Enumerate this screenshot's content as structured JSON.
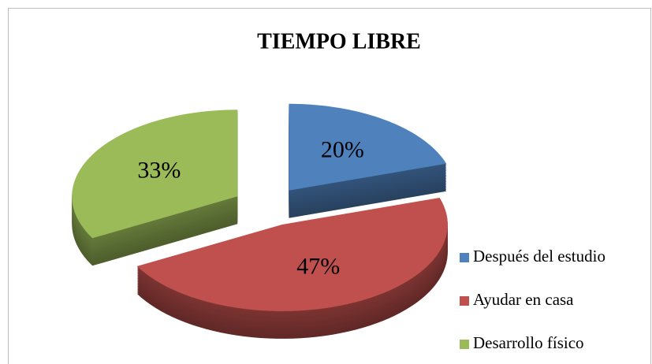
{
  "chart_data": {
    "type": "pie",
    "title": "TIEMPO LIBRE",
    "categories": [
      "Después del estudio",
      "Ayudar en casa",
      "Desarrollo físico"
    ],
    "values": [
      20,
      47,
      33
    ],
    "value_labels": [
      "20%",
      "47%",
      "33%"
    ],
    "colors": [
      "#4f81bd",
      "#c0504d",
      "#9bbb59"
    ],
    "legend": "right"
  }
}
